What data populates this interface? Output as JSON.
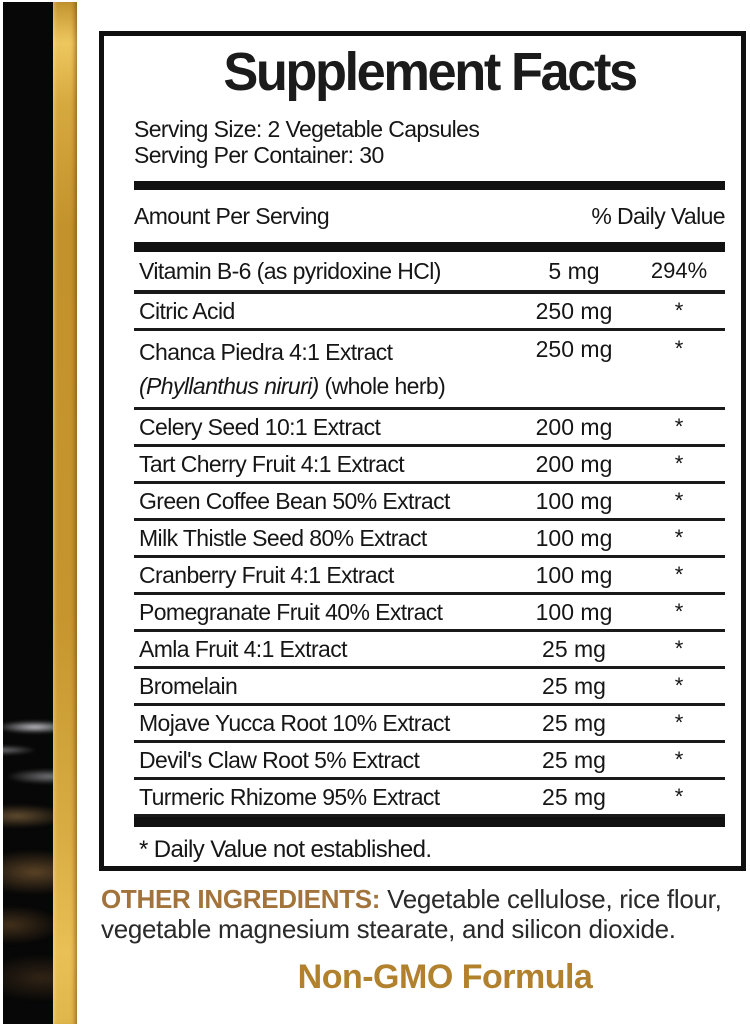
{
  "label": {
    "title": "Supplement Facts",
    "serving_size": "Serving Size: 2 Vegetable Capsules",
    "serving_per_container": "Serving Per Container: 30",
    "header": {
      "amount": "Amount Per Serving",
      "daily_value": "% Daily Value"
    },
    "rows": [
      {
        "name": "Vitamin B-6 (as pyridoxine HCl)",
        "amount": "5 mg",
        "dv": "294%"
      },
      {
        "name": "Citric Acid",
        "amount": "250 mg",
        "dv": "*"
      },
      {
        "name": "Chanca Piedra 4:1 Extract",
        "name_line2_italic": "(Phyllanthus niruri)",
        "name_line2_rest": " (whole herb)",
        "amount": "250 mg",
        "dv": "*"
      },
      {
        "name": "Celery Seed 10:1 Extract",
        "amount": "200 mg",
        "dv": "*"
      },
      {
        "name": "Tart Cherry Fruit 4:1 Extract",
        "amount": "200 mg",
        "dv": "*"
      },
      {
        "name": "Green Coffee Bean 50% Extract",
        "amount": "100 mg",
        "dv": "*"
      },
      {
        "name": "Milk Thistle Seed 80% Extract",
        "amount": "100 mg",
        "dv": "*"
      },
      {
        "name": "Cranberry Fruit 4:1 Extract",
        "amount": "100 mg",
        "dv": "*"
      },
      {
        "name": "Pomegranate Fruit 40% Extract",
        "amount": "100 mg",
        "dv": "*"
      },
      {
        "name": "Amla Fruit 4:1 Extract",
        "amount": "25 mg",
        "dv": "*"
      },
      {
        "name": "Bromelain",
        "amount": "25 mg",
        "dv": "*"
      },
      {
        "name": "Mojave Yucca Root 10% Extract",
        "amount": "25 mg",
        "dv": "*"
      },
      {
        "name": "Devil's Claw Root 5% Extract",
        "amount": "25 mg",
        "dv": "*"
      },
      {
        "name": "Turmeric Rhizome 95% Extract",
        "amount": "25 mg",
        "dv": "*"
      }
    ],
    "footnote": "* Daily Value not established.",
    "other_ingredients_label": "OTHER INGREDIENTS:",
    "other_ingredients_text": " Vegetable cellulose, rice flour, vegetable magnesium stearate, and silicon dioxide.",
    "non_gmo": "Non-GMO Formula"
  },
  "colors": {
    "gold_text": "#a2743c",
    "non_gmo_gold": "#b2812e",
    "gold_bar": "#c6952e",
    "ink": "#141414"
  }
}
